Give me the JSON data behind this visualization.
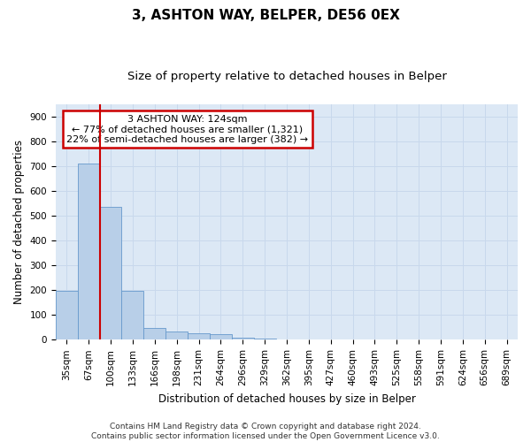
{
  "title": "3, ASHTON WAY, BELPER, DE56 0EX",
  "subtitle": "Size of property relative to detached houses in Belper",
  "xlabel": "Distribution of detached houses by size in Belper",
  "ylabel": "Number of detached properties",
  "categories": [
    "35sqm",
    "67sqm",
    "100sqm",
    "133sqm",
    "166sqm",
    "198sqm",
    "231sqm",
    "264sqm",
    "296sqm",
    "329sqm",
    "362sqm",
    "395sqm",
    "427sqm",
    "460sqm",
    "493sqm",
    "525sqm",
    "558sqm",
    "591sqm",
    "624sqm",
    "656sqm",
    "689sqm"
  ],
  "values": [
    197,
    710,
    537,
    196,
    47,
    32,
    27,
    24,
    10,
    5,
    0,
    0,
    0,
    0,
    0,
    0,
    0,
    0,
    0,
    0,
    0
  ],
  "bar_color": "#b8cfe8",
  "bar_edge_color": "#6699cc",
  "grid_color": "#c8d8ec",
  "background_color": "#dce8f5",
  "annotation_text": "3 ASHTON WAY: 124sqm\n← 77% of detached houses are smaller (1,321)\n22% of semi-detached houses are larger (382) →",
  "annotation_box_color": "#ffffff",
  "annotation_border_color": "#cc0000",
  "property_line_color": "#cc0000",
  "property_line_x": 1.5,
  "ylim": [
    0,
    950
  ],
  "yticks": [
    0,
    100,
    200,
    300,
    400,
    500,
    600,
    700,
    800,
    900
  ],
  "footer": "Contains HM Land Registry data © Crown copyright and database right 2024.\nContains public sector information licensed under the Open Government Licence v3.0.",
  "title_fontsize": 11,
  "subtitle_fontsize": 9.5,
  "xlabel_fontsize": 8.5,
  "ylabel_fontsize": 8.5,
  "tick_fontsize": 7.5,
  "annotation_fontsize": 8,
  "footer_fontsize": 6.5
}
